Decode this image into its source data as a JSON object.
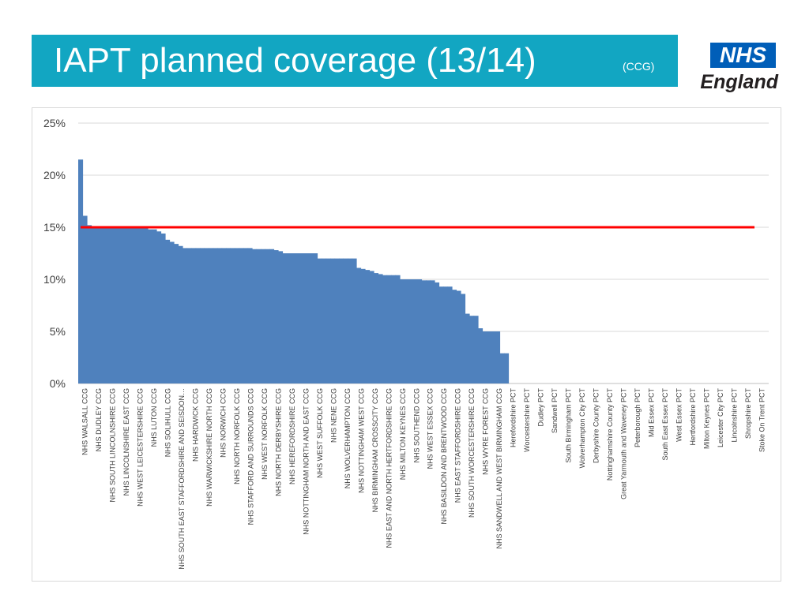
{
  "header": {
    "title": "IAPT planned coverage (13/14)",
    "subtitle": "(CCG)",
    "logo_top": "NHS",
    "logo_bottom": "England"
  },
  "colors": {
    "title_bar": "#12a6c2",
    "bars": "#4f81bd",
    "target_line": "#ff0000",
    "logo_blue": "#005eb8"
  },
  "chart_data": {
    "type": "bar",
    "ylim": [
      0,
      25
    ],
    "yticks": [
      "0%",
      "5%",
      "10%",
      "15%",
      "20%",
      "25%"
    ],
    "target": 15,
    "grid": true,
    "categories": [
      "NHS WALSALL CCG",
      "NHS DUDLEY CCG",
      "NHS SOUTH LINCOLNSHIRE CCG",
      "NHS LINCOLNSHIRE EAST CCG",
      "NHS WEST LEICESTERSHIRE CCG",
      "NHS LUTON CCG",
      "NHS SOLIHULL CCG",
      "NHS SOUTH EAST STAFFORDSHIRE AND SEISDON…",
      "NHS HARDWICK CCG",
      "NHS WARWICKSHIRE NORTH CCG",
      "NHS NORWICH CCG",
      "NHS NORTH NORFOLK CCG",
      "NHS STAFFORD AND SURROUNDS CCG",
      "NHS WEST NORFOLK CCG",
      "NHS NORTH DERBYSHIRE CCG",
      "NHS HEREFORDSHIRE CCG",
      "NHS NOTTINGHAM NORTH AND EAST CCG",
      "NHS WEST SUFFOLK CCG",
      "NHS NENE CCG",
      "NHS WOLVERHAMPTON CCG",
      "NHS NOTTINGHAM WEST CCG",
      "NHS BIRMINGHAM CROSSCITY CCG",
      "NHS EAST AND NORTH HERTFORDSHIRE CCG",
      "NHS MILTON KEYNES CCG",
      "NHS SOUTHEND CCG",
      "NHS WEST ESSEX CCG",
      "NHS BASILDON AND BRENTWOOD CCG",
      "NHS EAST STAFFORDSHIRE CCG",
      "NHS SOUTH WORCESTERSHIRE CCG",
      "NHS WYRE FOREST CCG",
      "NHS SANDWELL AND WEST BIRMINGHAM CCG",
      "Herefordshire PCT",
      "Worcestershire PCT",
      "Dudley PCT",
      "Sandwell PCT",
      "South Birmingham PCT",
      "Wolverhampton City PCT",
      "Derbyshire County PCT",
      "Nottinghamshire County PCT",
      "Great Yarmouth and Waveney PCT",
      "Peterborough PCT",
      "Mid Essex PCT",
      "South East Essex PCT",
      "West Essex PCT",
      "Hertfordshire PCT",
      "Milton Keynes PCT",
      "Leicester City PCT",
      "Lincolnshire PCT",
      "Shropshire PCT",
      "Stoke On Trent PCT"
    ],
    "values": [
      21.5,
      16.1,
      15.2,
      15.0,
      15.0,
      15.0,
      14.5,
      13.4,
      13.0,
      13.0,
      13.0,
      13.0,
      12.9,
      12.9,
      12.6,
      12.5,
      12.5,
      12.0,
      12.0,
      11.0,
      10.7,
      10.4,
      10.4,
      10.0,
      9.9,
      9.7,
      9.2,
      8.6,
      6.5,
      5.0,
      2.8,
      null,
      null,
      null,
      null,
      null,
      null,
      null,
      null,
      null,
      null,
      null,
      null,
      null,
      null,
      null,
      null,
      null,
      null,
      null
    ],
    "step_values": [
      21.5,
      16.1,
      15.2,
      15.0,
      15.0,
      15.0,
      15.0,
      15.0,
      15.0,
      15.0,
      15.0,
      15.0,
      15.0,
      14.9,
      14.9,
      14.9,
      14.8,
      14.8,
      14.6,
      14.4,
      13.8,
      13.6,
      13.4,
      13.2,
      13.0,
      13.0,
      13.0,
      13.0,
      13.0,
      13.0,
      13.0,
      13.0,
      13.0,
      13.0,
      13.0,
      13.0,
      13.0,
      13.0,
      13.0,
      13.0,
      12.9,
      12.9,
      12.9,
      12.9,
      12.9,
      12.8,
      12.7,
      12.5,
      12.5,
      12.5,
      12.5,
      12.5,
      12.5,
      12.5,
      12.5,
      12.0,
      12.0,
      12.0,
      12.0,
      12.0,
      12.0,
      12.0,
      12.0,
      12.0,
      11.1,
      11.0,
      10.9,
      10.8,
      10.6,
      10.5,
      10.4,
      10.4,
      10.4,
      10.4,
      10.0,
      10.0,
      10.0,
      10.0,
      10.0,
      9.9,
      9.9,
      9.9,
      9.7,
      9.3,
      9.3,
      9.3,
      9.0,
      8.9,
      8.6,
      6.7,
      6.5,
      6.5,
      5.3,
      5.0,
      5.0,
      5.0,
      5.0,
      2.9,
      2.9
    ]
  }
}
